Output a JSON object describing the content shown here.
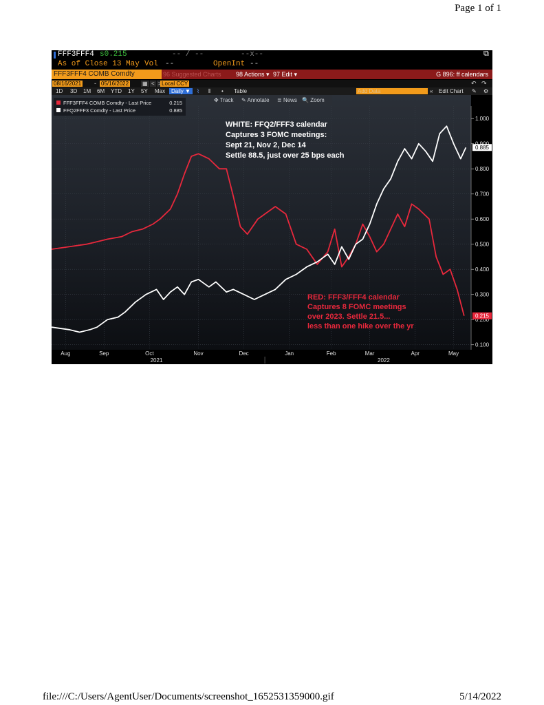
{
  "page": {
    "header": "Page 1 of 1",
    "footer_path": "file:///C:/Users/AgentUser/Documents/screenshot_1652531359000.gif",
    "footer_date": "5/14/2022"
  },
  "terminal": {
    "ticker": "FFF3FFF4",
    "last": "s0.215",
    "field1": "-- / --",
    "field2": "--x--",
    "close_line": "As of Close 13 May",
    "vol_label": "Vol",
    "vol_value": "--",
    "openint_label": "OpenInt",
    "openint_value": "--",
    "security": "FFF3FFF4 COMB Comdty",
    "suggested": "96 Suggested Charts",
    "actions": "98 Actions ▾",
    "edit": "97 Edit ▾",
    "function": "G 896: ff calendars",
    "start_date": "08/16/2021",
    "end_date": "05/16/2022",
    "currency": "Local CCY",
    "ranges": [
      "1D",
      "3D",
      "1M",
      "6M",
      "YTD",
      "1Y",
      "5Y",
      "Max"
    ],
    "frequency": "Daily ▼",
    "table_btn": "Table",
    "add_data": "Add Data",
    "edit_chart": "Edit Chart",
    "tools": [
      "Track",
      "Annotate",
      "News",
      "Zoom"
    ]
  },
  "colors": {
    "accent": "#f29b1b",
    "red_series": "#e8283c",
    "white_series": "#ffffff",
    "panel_red": "#8b1a1a",
    "active_blue": "#2f6fd8"
  },
  "chart_data": {
    "type": "line",
    "ylim": [
      0.08,
      1.05
    ],
    "yticks": [
      "1.000",
      "0.900",
      "0.800",
      "0.700",
      "0.600",
      "0.500",
      "0.400",
      "0.300",
      "0.200",
      "0.100"
    ],
    "ytick_values": [
      1.0,
      0.9,
      0.8,
      0.7,
      0.6,
      0.5,
      0.4,
      0.3,
      0.2,
      0.1
    ],
    "xticks": [
      "Aug",
      "Sep",
      "Oct",
      "Nov",
      "Dec",
      "Jan",
      "Feb",
      "Mar",
      "Apr",
      "May"
    ],
    "xtick_idx": [
      0.4,
      1.5,
      2.8,
      4.2,
      5.5,
      6.8,
      8.0,
      9.1,
      10.4,
      11.5
    ],
    "years": [
      "2021",
      "2022"
    ],
    "year_idx": [
      3.0,
      9.5
    ],
    "x_max": 12,
    "series": [
      {
        "name": "FFF3FFF4 COMB Comdty - Last Price",
        "legend_value": "0.215",
        "color": "#e8283c",
        "x": [
          0,
          0.5,
          1,
          1.3,
          1.6,
          2.0,
          2.3,
          2.6,
          2.9,
          3.1,
          3.4,
          3.6,
          3.8,
          4.0,
          4.2,
          4.5,
          4.8,
          5.0,
          5.2,
          5.4,
          5.6,
          5.9,
          6.1,
          6.4,
          6.7,
          7.0,
          7.3,
          7.6,
          7.9,
          8.1,
          8.3,
          8.5,
          8.7,
          8.9,
          9.1,
          9.3,
          9.5,
          9.7,
          9.9,
          10.1,
          10.3,
          10.5,
          10.8,
          11.0,
          11.2,
          11.4,
          11.6,
          11.8
        ],
        "values": [
          0.48,
          0.49,
          0.5,
          0.51,
          0.52,
          0.53,
          0.55,
          0.56,
          0.58,
          0.6,
          0.64,
          0.7,
          0.78,
          0.85,
          0.86,
          0.84,
          0.8,
          0.8,
          0.69,
          0.57,
          0.54,
          0.6,
          0.62,
          0.65,
          0.62,
          0.5,
          0.48,
          0.42,
          0.47,
          0.56,
          0.41,
          0.45,
          0.5,
          0.58,
          0.53,
          0.47,
          0.5,
          0.56,
          0.62,
          0.57,
          0.66,
          0.64,
          0.6,
          0.45,
          0.38,
          0.4,
          0.32,
          0.215
        ]
      },
      {
        "name": "FFQ2FFF3 Comdty - Last Price",
        "legend_value": "0.885",
        "color": "#ffffff",
        "x": [
          0,
          0.5,
          0.8,
          1.1,
          1.3,
          1.6,
          1.9,
          2.1,
          2.4,
          2.7,
          3.0,
          3.2,
          3.4,
          3.6,
          3.8,
          4.0,
          4.2,
          4.5,
          4.7,
          5.0,
          5.2,
          5.5,
          5.8,
          6.1,
          6.4,
          6.7,
          7.0,
          7.3,
          7.6,
          7.9,
          8.1,
          8.3,
          8.5,
          8.7,
          8.9,
          9.1,
          9.3,
          9.5,
          9.7,
          9.9,
          10.1,
          10.3,
          10.5,
          10.7,
          10.9,
          11.1,
          11.3,
          11.5,
          11.7,
          11.85
        ],
        "values": [
          0.17,
          0.16,
          0.15,
          0.16,
          0.17,
          0.2,
          0.21,
          0.23,
          0.27,
          0.3,
          0.32,
          0.28,
          0.31,
          0.33,
          0.3,
          0.35,
          0.36,
          0.33,
          0.35,
          0.31,
          0.32,
          0.3,
          0.28,
          0.3,
          0.32,
          0.36,
          0.38,
          0.41,
          0.43,
          0.46,
          0.42,
          0.49,
          0.44,
          0.5,
          0.52,
          0.58,
          0.66,
          0.72,
          0.76,
          0.83,
          0.88,
          0.84,
          0.9,
          0.87,
          0.83,
          0.94,
          0.97,
          0.9,
          0.84,
          0.885
        ]
      }
    ],
    "annotations": [
      {
        "name": "white-note",
        "color": "#ffffff",
        "lines": [
          "WHITE: FFQ2/FFF3 calendar",
          "Captures 3 FOMC meetings:",
          "Sept 21, Nov 2, Dec 14",
          "Settle 88.5, just over 25 bps each"
        ]
      },
      {
        "name": "red-note",
        "color": "#e8283c",
        "lines": [
          "RED: FFF3/FFF4 calendar",
          "Captures 8 FOMC meetings",
          "over 2023.  Settle 21.5...",
          "less than one hike over the yr"
        ]
      }
    ]
  }
}
